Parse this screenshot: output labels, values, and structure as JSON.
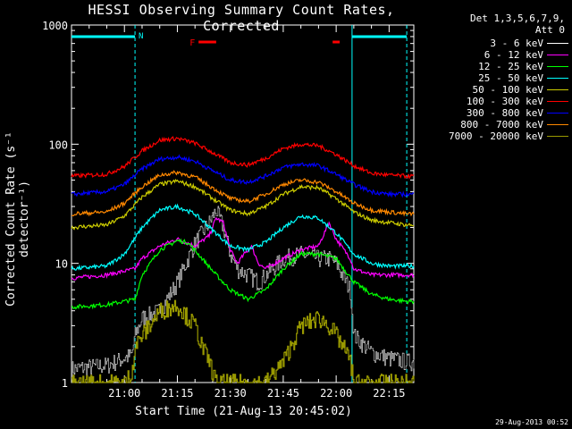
{
  "chart_data": {
    "type": "line",
    "title": "HESSI Observing Summary Count Rates, Corrected",
    "xlabel": "Start Time (21-Aug-13 20:45:02)",
    "ylabel": "Corrected Count Rate (s⁻¹ detector⁻¹)",
    "yscale": "log",
    "xlim_minutes": [
      45,
      142
    ],
    "ylim": [
      1,
      1000
    ],
    "x_tick_labels": [
      "21:00",
      "21:15",
      "21:30",
      "21:45",
      "22:00",
      "22:15"
    ],
    "x_tick_minutes": [
      60,
      75,
      90,
      105,
      120,
      135
    ],
    "y_tick_labels": [
      "1",
      "10",
      "100",
      "1000"
    ],
    "y_tick_values": [
      1,
      10,
      100,
      1000
    ],
    "detectors_line1": "Det 1,3,5,6,7,9,",
    "detectors_line2": "Att 0",
    "night_flag_label": "N",
    "flare_flag_label": "F",
    "saa_boundaries_minutes": [
      63,
      124.5
    ],
    "night_intervals_minutes": [
      [
        45,
        63
      ],
      [
        124.5,
        140
      ]
    ],
    "flare_intervals_minutes": [
      [
        81,
        86
      ],
      [
        119,
        121
      ]
    ],
    "series": [
      {
        "name": "3 - 6 keV",
        "color": "#000000",
        "x": [
          45,
          55,
          62,
          63,
          65,
          70,
          75,
          80,
          84,
          86,
          88,
          90,
          92,
          95,
          98,
          100,
          105,
          110,
          115,
          118,
          120,
          124,
          125,
          130,
          135,
          140
        ],
        "y": [
          1.3,
          1.4,
          1.7,
          2.5,
          3.5,
          4,
          7,
          15,
          22,
          28,
          20,
          12,
          9,
          8,
          7,
          8,
          11,
          12,
          11,
          11,
          10,
          6,
          2.5,
          1.8,
          1.6,
          1.5
        ]
      },
      {
        "name": "6 - 12 keV",
        "color": "#ff00ff",
        "x": [
          45,
          55,
          63,
          65,
          70,
          75,
          80,
          84,
          86,
          88,
          90,
          92,
          94,
          96,
          98,
          100,
          105,
          110,
          115,
          118,
          120,
          124,
          125,
          130,
          135,
          140
        ],
        "y": [
          7.5,
          8,
          9,
          11,
          14,
          16,
          14,
          17,
          24,
          22,
          13,
          10,
          12,
          14,
          10,
          9,
          11,
          13,
          14,
          22,
          16,
          11,
          9,
          8,
          8,
          8
        ]
      },
      {
        "name": "12 - 25 keV",
        "color": "#00ff00",
        "x": [
          45,
          55,
          63,
          65,
          70,
          75,
          78,
          82,
          86,
          90,
          95,
          100,
          105,
          110,
          115,
          120,
          125,
          130,
          135,
          140
        ],
        "y": [
          4.3,
          4.5,
          5,
          8,
          13,
          15.5,
          15,
          11,
          8,
          6,
          5,
          6,
          9,
          12,
          12,
          11,
          7,
          5.5,
          5,
          4.8
        ]
      },
      {
        "name": "25 - 50 keV",
        "color": "#00ffff",
        "x": [
          45,
          55,
          60,
          65,
          70,
          75,
          80,
          85,
          90,
          95,
          100,
          105,
          110,
          115,
          120,
          125,
          130,
          135,
          140
        ],
        "y": [
          9,
          9.5,
          12,
          20,
          28,
          30,
          26,
          19,
          14,
          13,
          15,
          20,
          25,
          24,
          18,
          12,
          10,
          9.5,
          9.5
        ]
      },
      {
        "name": "50 - 100 keV",
        "color": "#cccc00",
        "x": [
          45,
          55,
          60,
          65,
          70,
          75,
          80,
          85,
          90,
          95,
          100,
          105,
          110,
          115,
          120,
          125,
          130,
          135,
          140
        ],
        "y": [
          20,
          21,
          25,
          36,
          46,
          49,
          44,
          35,
          28,
          26,
          30,
          38,
          44,
          43,
          35,
          27,
          23,
          22,
          21
        ]
      },
      {
        "name": "100 - 300 keV",
        "color": "#ff0000",
        "x": [
          45,
          55,
          60,
          65,
          70,
          75,
          80,
          85,
          90,
          95,
          100,
          105,
          110,
          115,
          120,
          125,
          130,
          135,
          140
        ],
        "y": [
          54,
          56,
          65,
          88,
          108,
          112,
          102,
          85,
          70,
          67,
          76,
          92,
          100,
          97,
          82,
          66,
          57,
          55,
          54
        ]
      },
      {
        "name": "300 - 800 keV",
        "color": "#0000ff",
        "x": [
          45,
          55,
          60,
          65,
          70,
          75,
          80,
          85,
          90,
          95,
          100,
          105,
          110,
          115,
          120,
          125,
          130,
          135,
          140
        ],
        "y": [
          38,
          40,
          46,
          62,
          75,
          78,
          72,
          60,
          50,
          48,
          54,
          64,
          68,
          66,
          56,
          46,
          40,
          38,
          38
        ]
      },
      {
        "name": "800 - 7000 keV",
        "color": "#ff8800",
        "x": [
          45,
          55,
          60,
          65,
          70,
          75,
          80,
          85,
          90,
          95,
          100,
          105,
          110,
          115,
          120,
          125,
          130,
          135,
          140
        ],
        "y": [
          26,
          27,
          32,
          44,
          55,
          58,
          53,
          43,
          35,
          33,
          38,
          46,
          50,
          48,
          40,
          32,
          28,
          27,
          26
        ]
      },
      {
        "name": "7000 - 20000 keV",
        "color": "#999900",
        "x": [
          45,
          55,
          60,
          62,
          63,
          65,
          67,
          70,
          75,
          78,
          80,
          82,
          84,
          86,
          88,
          90,
          95,
          100,
          105,
          110,
          115,
          118,
          120,
          122,
          124,
          125,
          130,
          135,
          140
        ],
        "y": [
          1,
          1,
          1,
          1.2,
          2,
          2.5,
          3,
          4,
          4.5,
          3.5,
          3,
          2,
          1.5,
          1,
          1,
          1,
          1,
          1,
          1.5,
          3,
          3.5,
          3,
          2.5,
          2,
          1.5,
          1,
          1,
          1,
          1
        ]
      }
    ]
  },
  "footer": {
    "timestamp": "29-Aug-2013 00:52"
  }
}
